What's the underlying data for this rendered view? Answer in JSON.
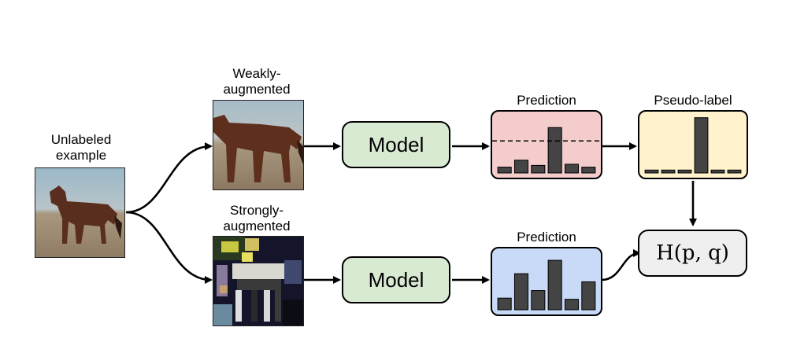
{
  "labels": {
    "unlabeled": "Unlabeled\nexample",
    "weak": "Weakly-\naugmented",
    "strong": "Strongly-\naugmented",
    "prediction_top": "Prediction",
    "pseudo": "Pseudo-label",
    "prediction_bottom": "Prediction"
  },
  "model_label": "Model",
  "loss_label": "H(p, q)",
  "colors": {
    "model_fill": "#d9ead3",
    "pred_top_fill": "#f4cccc",
    "pseudo_fill": "#fff2cc",
    "pred_bottom_fill": "#c9daf8",
    "loss_fill": "#efefef",
    "bar_fill": "#444444"
  },
  "histograms": {
    "prediction_top": {
      "values": [
        0.1,
        0.22,
        0.13,
        0.78,
        0.15,
        0.1
      ],
      "threshold": 0.55
    },
    "pseudo_label": {
      "values": [
        0.05,
        0.05,
        0.05,
        0.95,
        0.05,
        0.05
      ]
    },
    "prediction_bottom": {
      "values": [
        0.2,
        0.62,
        0.33,
        0.85,
        0.18,
        0.48
      ]
    }
  }
}
